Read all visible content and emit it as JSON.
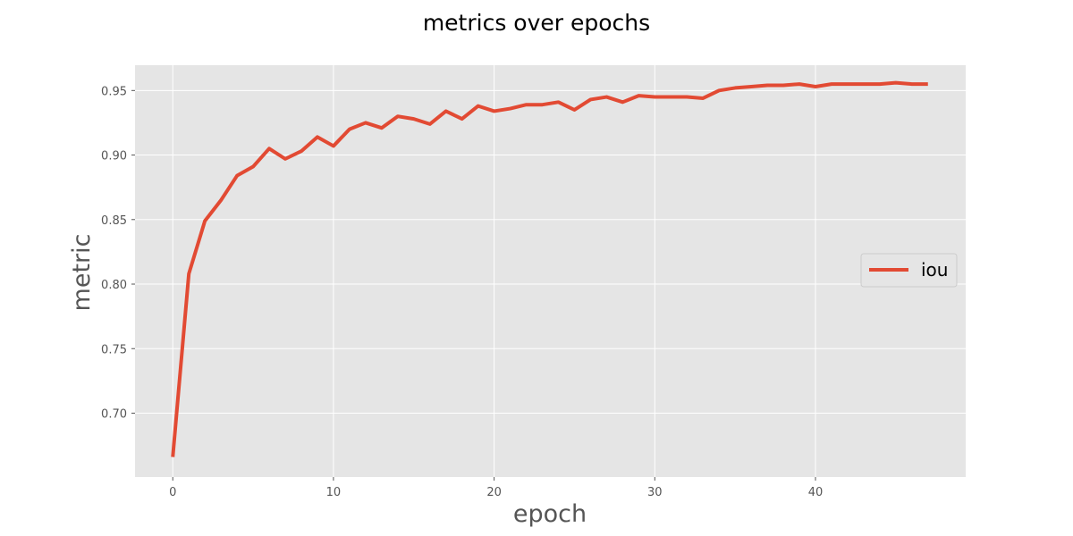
{
  "chart_data": {
    "type": "line",
    "title": "metrics over epochs",
    "xlabel": "epoch",
    "ylabel": "metric",
    "xlim": [
      -2.35,
      49.35
    ],
    "ylim": [
      0.6505,
      0.9696
    ],
    "xticks": [
      0,
      10,
      20,
      30,
      40
    ],
    "yticks": [
      0.7,
      0.75,
      0.8,
      0.85,
      0.9,
      0.95
    ],
    "xtick_labels": [
      "0",
      "10",
      "20",
      "30",
      "40"
    ],
    "ytick_labels": [
      "0.70",
      "0.75",
      "0.80",
      "0.85",
      "0.90",
      "0.95"
    ],
    "grid": true,
    "legend_position": "center-right",
    "style": {
      "background": "#e5e5e5",
      "grid_color": "#ffffff",
      "line_color": "#e24a33"
    },
    "x": [
      0,
      1,
      2,
      3,
      4,
      5,
      6,
      7,
      8,
      9,
      10,
      11,
      12,
      13,
      14,
      15,
      16,
      17,
      18,
      19,
      20,
      21,
      22,
      23,
      24,
      25,
      26,
      27,
      28,
      29,
      30,
      31,
      32,
      33,
      34,
      35,
      36,
      37,
      38,
      39,
      40,
      41,
      42,
      43,
      44,
      45,
      46,
      47
    ],
    "series": [
      {
        "name": "iou",
        "values": [
          0.666,
          0.808,
          0.849,
          0.865,
          0.884,
          0.891,
          0.905,
          0.897,
          0.903,
          0.914,
          0.907,
          0.92,
          0.925,
          0.921,
          0.93,
          0.928,
          0.924,
          0.934,
          0.928,
          0.938,
          0.934,
          0.936,
          0.939,
          0.939,
          0.941,
          0.935,
          0.943,
          0.945,
          0.941,
          0.946,
          0.945,
          0.945,
          0.945,
          0.944,
          0.95,
          0.952,
          0.953,
          0.954,
          0.954,
          0.955,
          0.953,
          0.955,
          0.955,
          0.955,
          0.955,
          0.956,
          0.955,
          0.955
        ]
      }
    ]
  }
}
